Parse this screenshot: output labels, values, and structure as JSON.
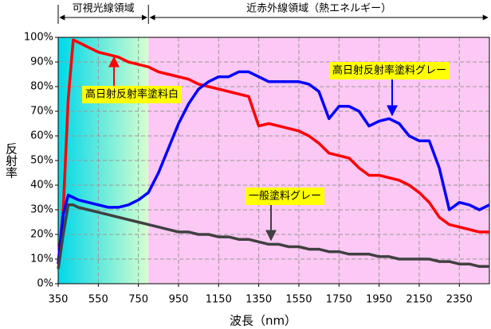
{
  "chart_data": {
    "type": "line",
    "xlabel": "波長（nm）",
    "ylabel": "反射率",
    "regions": [
      {
        "label": "可視光線領域",
        "range": [
          350,
          800
        ]
      },
      {
        "label": "近赤外線領域（熱エネルギー）",
        "range": [
          800,
          2500
        ]
      }
    ],
    "x": [
      350,
      375,
      400,
      425,
      450,
      500,
      550,
      600,
      650,
      700,
      750,
      800,
      850,
      900,
      950,
      1000,
      1050,
      1100,
      1150,
      1200,
      1250,
      1300,
      1350,
      1400,
      1450,
      1500,
      1550,
      1600,
      1650,
      1700,
      1750,
      1800,
      1850,
      1900,
      1950,
      2000,
      2050,
      2100,
      2150,
      2200,
      2250,
      2300,
      2350,
      2400,
      2450,
      2500
    ],
    "series": [
      {
        "name": "高日射反射率塗料白",
        "color": "#ff0000",
        "values": [
          8,
          30,
          75,
          99,
          98,
          96,
          94,
          93,
          92,
          90,
          89,
          88,
          86,
          85,
          84,
          83,
          81,
          80,
          79,
          78,
          77,
          76,
          64,
          65,
          64,
          63,
          62,
          60,
          57,
          53,
          52,
          51,
          47,
          44,
          44,
          43,
          42,
          40,
          37,
          33,
          27,
          24,
          23,
          22,
          21,
          21
        ]
      },
      {
        "name": "高日射反射率塗料グレー",
        "color": "#0000ff",
        "values": [
          8,
          28,
          36,
          35,
          34,
          33,
          32,
          31,
          31,
          32,
          34,
          37,
          45,
          55,
          65,
          73,
          79,
          82,
          84,
          84,
          86,
          86,
          84,
          82,
          82,
          82,
          82,
          81,
          78,
          67,
          72,
          72,
          70,
          64,
          66,
          67,
          65,
          60,
          58,
          58,
          47,
          30,
          33,
          32,
          30,
          32
        ]
      },
      {
        "name": "一般塗料グレー",
        "color": "#404040",
        "values": [
          6,
          20,
          32,
          32,
          31,
          30,
          29,
          28,
          27,
          26,
          25,
          24,
          23,
          22,
          21,
          21,
          20,
          20,
          19,
          19,
          18,
          18,
          17,
          16,
          16,
          15,
          15,
          14,
          14,
          13,
          13,
          12,
          12,
          12,
          11,
          11,
          10,
          10,
          10,
          10,
          9,
          9,
          8,
          8,
          7,
          7
        ]
      }
    ],
    "xlim": [
      350,
      2500
    ],
    "xticks": [
      350,
      550,
      750,
      950,
      1150,
      1350,
      1550,
      1750,
      1950,
      2150,
      2350
    ],
    "ylim": [
      0,
      100
    ],
    "yticks": [
      {
        "value": 0,
        "label": "0%"
      },
      {
        "value": 10,
        "label": "10%"
      },
      {
        "value": 20,
        "label": "20%"
      },
      {
        "value": 30,
        "label": "30%"
      },
      {
        "value": 40,
        "label": "40%"
      },
      {
        "value": 50,
        "label": "50%"
      },
      {
        "value": 60,
        "label": "60%"
      },
      {
        "value": 70,
        "label": "70%"
      },
      {
        "value": 80,
        "label": "80%"
      },
      {
        "value": 90,
        "label": "90%"
      },
      {
        "value": 100,
        "label": "100%"
      }
    ],
    "grid": true
  }
}
